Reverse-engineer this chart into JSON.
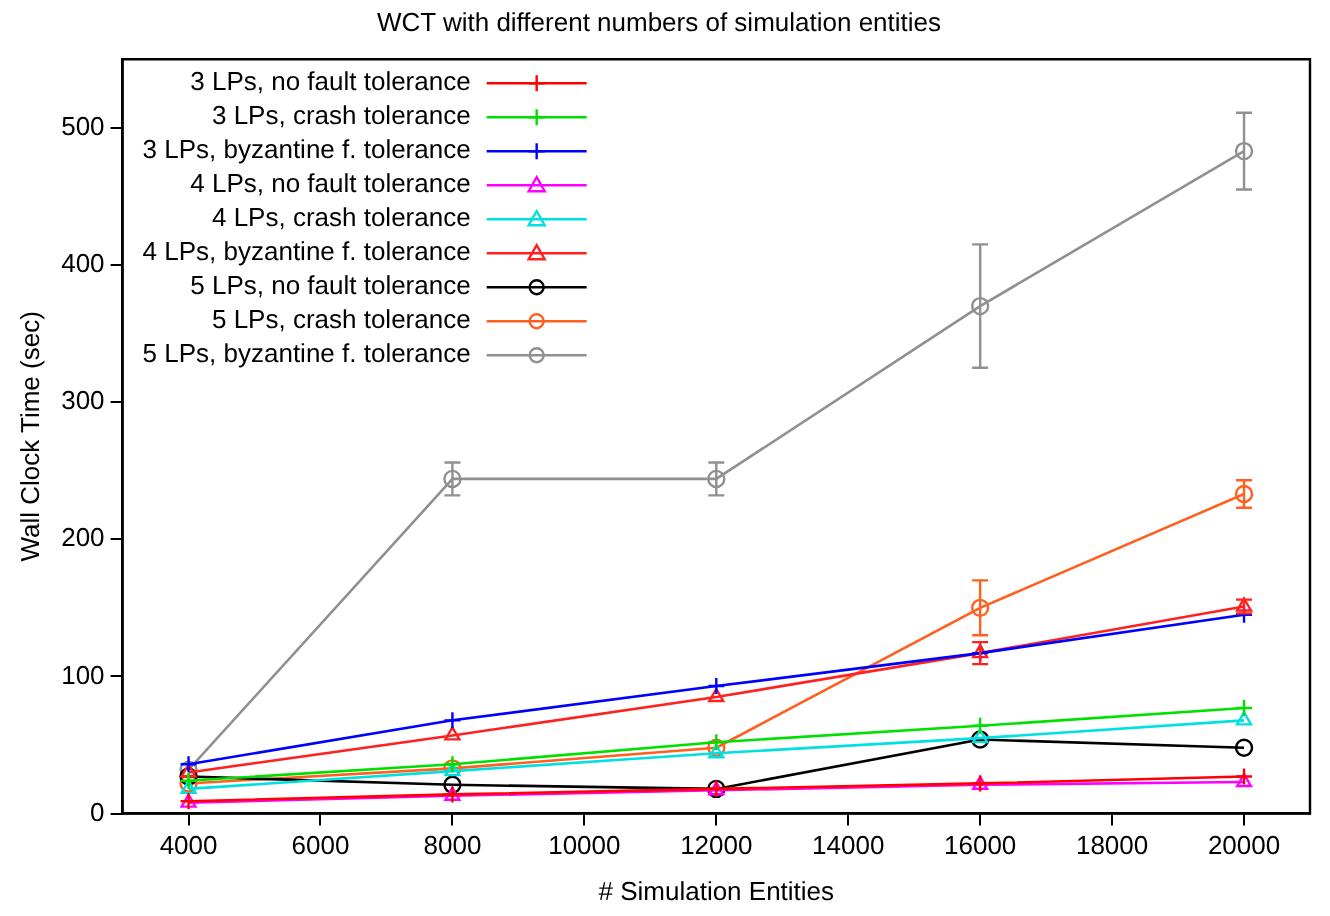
{
  "chart_data": {
    "type": "line",
    "title": "WCT with different numbers of simulation entities",
    "xlabel": "# Simulation Entities",
    "ylabel": "Wall Clock Time (sec)",
    "x": [
      4000,
      8000,
      12000,
      16000,
      20000
    ],
    "xlim": [
      3000,
      21000
    ],
    "xticks": [
      4000,
      6000,
      8000,
      10000,
      12000,
      14000,
      16000,
      18000,
      20000
    ],
    "ylim": [
      0,
      550
    ],
    "yticks": [
      0,
      100,
      200,
      300,
      400,
      500
    ],
    "grid": false,
    "legend": "top left",
    "series": [
      {
        "name": "3 LPs, no fault tolerance",
        "color": "#ff0000",
        "marker": "cross",
        "values": [
          9,
          14,
          18,
          22,
          27
        ]
      },
      {
        "name": "3 LPs, crash tolerance",
        "color": "#00e000",
        "marker": "cross",
        "values": [
          24,
          36,
          52,
          64,
          77
        ]
      },
      {
        "name": "3 LPs, byzantine f. tolerance",
        "color": "#0000ff",
        "marker": "cross",
        "values": [
          36,
          68,
          93,
          117,
          145
        ]
      },
      {
        "name": "4 LPs, no fault tolerance",
        "color": "#ff00ff",
        "marker": "triangle",
        "values": [
          8,
          13,
          17,
          21,
          23
        ]
      },
      {
        "name": "4 LPs, crash tolerance",
        "color": "#00e0e0",
        "marker": "triangle",
        "values": [
          18,
          31,
          44,
          55,
          68
        ]
      },
      {
        "name": "4 LPs, byzantine f. tolerance",
        "color": "#ff2020",
        "marker": "triangle",
        "values": [
          30,
          57,
          85,
          117,
          151
        ],
        "errors": [
          null,
          null,
          null,
          8,
          5
        ]
      },
      {
        "name": "5 LPs, no fault tolerance",
        "color": "#000000",
        "marker": "circle",
        "values": [
          27,
          21,
          18,
          54,
          48
        ]
      },
      {
        "name": "5 LPs, crash tolerance",
        "color": "#ff6020",
        "marker": "circle",
        "values": [
          22,
          33,
          48,
          150,
          233
        ],
        "errors": [
          null,
          null,
          null,
          20,
          10
        ]
      },
      {
        "name": "5 LPs, byzantine f. tolerance",
        "color": "#909090",
        "marker": "circle",
        "values": [
          32,
          244,
          244,
          370,
          483
        ],
        "errors": [
          null,
          12,
          12,
          45,
          28
        ]
      }
    ]
  }
}
